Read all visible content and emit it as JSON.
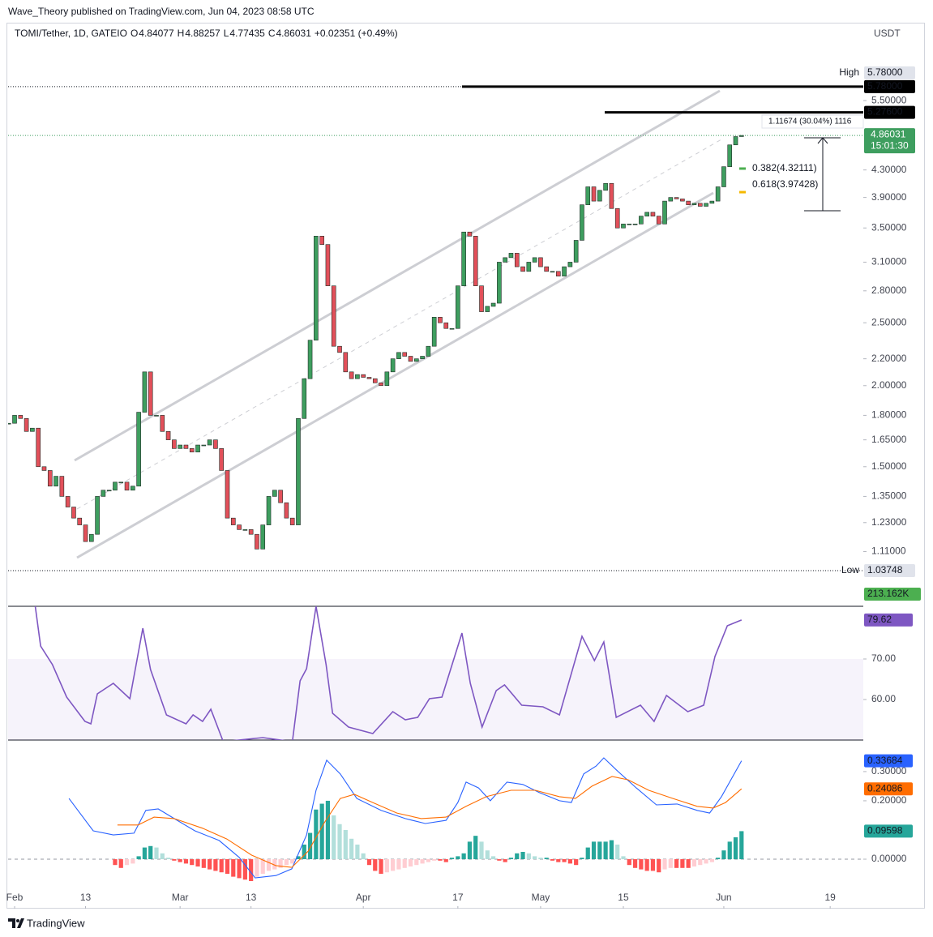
{
  "header": {
    "published": "Wave_Theory published on TradingView.com, Jun 04, 2023 08:58 UTC",
    "symbol": "TOMI/Tether, 1D, GATEIO",
    "ohlc": [
      {
        "key": "O",
        "value": "4.84077"
      },
      {
        "key": "H",
        "value": "4.88257"
      },
      {
        "key": "L",
        "value": "4.77435"
      },
      {
        "key": "C",
        "value": "4.86031"
      }
    ],
    "change": "+0.02351 (+0.49%)",
    "currency": "USDT"
  },
  "chart_data": [
    {
      "type": "candlestick",
      "log_scale": true,
      "up_color": "#3e9e5f",
      "down_color": "#e2505a",
      "x": [
        -1,
        0,
        1,
        2,
        3,
        4,
        5,
        6,
        7,
        8,
        9,
        10,
        11,
        12,
        13,
        14,
        15,
        16,
        17,
        18,
        19,
        20,
        21,
        22,
        23,
        24,
        25,
        26,
        27,
        28,
        29,
        30,
        31,
        32,
        33,
        34,
        35,
        36,
        37,
        38,
        39,
        40,
        41,
        42,
        43,
        44,
        45,
        46,
        47,
        48,
        49,
        50,
        51,
        52,
        53,
        54,
        55,
        56,
        57,
        58,
        59,
        60,
        61,
        62,
        63,
        64,
        65,
        66,
        67,
        68,
        69,
        70,
        71,
        72,
        73,
        74,
        75,
        76,
        77,
        78,
        79,
        80,
        81,
        82,
        83,
        84,
        85,
        86,
        87,
        88,
        89,
        90,
        91,
        92,
        93,
        94,
        95,
        96,
        97,
        98,
        99,
        100,
        101,
        102,
        103,
        104,
        105,
        106,
        107,
        108,
        109,
        110,
        111,
        112,
        113,
        114,
        115,
        116,
        117,
        118,
        119,
        120,
        121,
        122,
        123
      ],
      "values": [
        1.75,
        1.8,
        1.78,
        1.7,
        1.72,
        1.5,
        1.48,
        1.4,
        1.45,
        1.35,
        1.3,
        1.25,
        1.22,
        1.15,
        1.18,
        1.35,
        1.38,
        1.38,
        1.42,
        1.42,
        1.38,
        1.4,
        1.82,
        2.1,
        1.8,
        1.8,
        1.7,
        1.65,
        1.6,
        1.62,
        1.6,
        1.58,
        1.62,
        1.62,
        1.65,
        1.6,
        1.48,
        1.25,
        1.22,
        1.2,
        1.2,
        1.18,
        1.12,
        1.22,
        1.35,
        1.38,
        1.32,
        1.25,
        1.22,
        1.78,
        2.05,
        2.35,
        3.4,
        3.3,
        2.85,
        2.3,
        2.25,
        2.1,
        2.05,
        2.08,
        2.06,
        2.05,
        2.02,
        2.0,
        2.1,
        2.2,
        2.25,
        2.22,
        2.18,
        2.2,
        2.22,
        2.3,
        2.55,
        2.5,
        2.45,
        2.45,
        2.85,
        3.45,
        3.4,
        2.85,
        2.6,
        2.65,
        2.68,
        3.1,
        3.15,
        3.2,
        3.05,
        3.0,
        3.1,
        3.15,
        3.05,
        3.0,
        3.0,
        2.95,
        3.05,
        3.1,
        3.35,
        3.8,
        4.05,
        3.85,
        4.0,
        4.1,
        3.75,
        3.5,
        3.55,
        3.55,
        3.55,
        3.65,
        3.7,
        3.65,
        3.55,
        3.85,
        3.9,
        3.88,
        3.85,
        3.8,
        3.82,
        3.78,
        3.82,
        3.85,
        4.05,
        4.35,
        4.7,
        4.84077,
        4.86031
      ],
      "xlim": [
        -1.1,
        143.6
      ],
      "xticks": [
        {
          "value": 0,
          "label": "Feb"
        },
        {
          "value": 12,
          "label": "13"
        },
        {
          "value": 28,
          "label": "Mar"
        },
        {
          "value": 40,
          "label": "13"
        },
        {
          "value": 59,
          "label": "Apr"
        },
        {
          "value": 75,
          "label": "17"
        },
        {
          "value": 89,
          "label": "May"
        },
        {
          "value": 103,
          "label": "15"
        },
        {
          "value": 120,
          "label": "Jun"
        },
        {
          "value": 138,
          "label": "19"
        }
      ],
      "ylim": [
        0.914,
        7.21
      ],
      "yticks": [
        {
          "value": 5.5,
          "label": "5.50000"
        },
        {
          "value": 4.3,
          "label": "4.30000"
        },
        {
          "value": 3.9,
          "label": "3.90000"
        },
        {
          "value": 3.5,
          "label": "3.50000"
        },
        {
          "value": 3.1,
          "label": "3.10000"
        },
        {
          "value": 2.8,
          "label": "2.80000"
        },
        {
          "value": 2.5,
          "label": "2.50000"
        },
        {
          "value": 2.2,
          "label": "2.20000"
        },
        {
          "value": 2,
          "label": "2.00000"
        },
        {
          "value": 1.8,
          "label": "1.80000"
        },
        {
          "value": 1.65,
          "label": "1.65000"
        },
        {
          "value": 1.5,
          "label": "1.50000"
        },
        {
          "value": 1.35,
          "label": "1.35000"
        },
        {
          "value": 1.23,
          "label": "1.23000"
        },
        {
          "value": 1.11,
          "label": "1.11000"
        }
      ],
      "high_label": "High",
      "high": {
        "value": 5.78,
        "label": "5.78000"
      },
      "low_label": "Low",
      "low": 1.03748,
      "levels": [
        {
          "value": 5.78,
          "label": "5.78000"
        },
        {
          "value": 5.276,
          "label": "5.27600"
        }
      ],
      "countdown": "15:01:30",
      "fib": [
        {
          "value": 4.32111,
          "label": "0.382(4.32111)",
          "color": "#4caf50"
        },
        {
          "value": 3.97428,
          "label": "0.618(3.97428)",
          "color": "#f5b800"
        }
      ],
      "measure": "1.11674 (30.04%) 1116",
      "volume_label": "213.162K"
    },
    {
      "type": "line",
      "color": "#7e57c2",
      "x": [
        3.5,
        4.4,
        6.4,
        8.8,
        11.9,
        12.9,
        14,
        16.7,
        19.5,
        21.7,
        23,
        25.7,
        29,
        30.2,
        31.8,
        33.2,
        35.3,
        42,
        47,
        48.3,
        49.4,
        51,
        52.7,
        53.8,
        56.5,
        60.6,
        64,
        66.1,
        68.2,
        70.2,
        72.3,
        75.7,
        77.1,
        79.1,
        81.5,
        82.9,
        85.8,
        89.4,
        92.2,
        96,
        98.1,
        99.7,
        101.8,
        105.9,
        108.2,
        110.3,
        113.9,
        116.6,
        118.5,
        120.6,
        123
      ],
      "values": [
        83,
        73.2,
        68.6,
        60.6,
        54.6,
        54,
        61.4,
        64,
        60.2,
        77.6,
        67.4,
        56.2,
        54,
        56.2,
        54.6,
        57.6,
        49.6,
        50.6,
        49.6,
        64.6,
        67.6,
        83,
        68.6,
        56.6,
        53.2,
        51.6,
        57,
        55,
        55.6,
        60.2,
        60.6,
        76.4,
        64,
        53.2,
        62.2,
        63.6,
        58.6,
        58.2,
        56.2,
        75.6,
        69.6,
        74.2,
        55.6,
        58.6,
        54.6,
        61,
        57,
        58.6,
        70.6,
        78.2,
        79.62
      ],
      "ylim": [
        50,
        83
      ],
      "yticks": [
        {
          "value": 70,
          "label": "70.00"
        },
        {
          "value": 60,
          "label": "60.00"
        }
      ]
    },
    {
      "type": "macd",
      "series": [
        {
          "color": "#2962ff",
          "x": [
            9.2,
            13.3,
            16.7,
            20.2,
            22.2,
            24.3,
            27,
            30.5,
            34.6,
            38,
            40.7,
            44.2,
            46.9,
            49.4,
            51,
            52.8,
            55.1,
            57.9,
            62,
            66.1,
            69.5,
            73,
            75,
            76.4,
            78.5,
            80.5,
            83.3,
            86,
            88.8,
            92.2,
            94.2,
            96.3,
            98.4,
            99.7,
            101.8,
            105.2,
            108.6,
            112.1,
            115.5,
            117.6,
            119.6,
            123
          ],
          "values": [
            0.208,
            0.097,
            0.083,
            0.089,
            0.167,
            0.172,
            0.139,
            0.097,
            0.064,
            0.006,
            -0.064,
            -0.056,
            -0.033,
            0.083,
            0.236,
            0.339,
            0.292,
            0.208,
            0.167,
            0.139,
            0.122,
            0.133,
            0.194,
            0.264,
            0.244,
            0.2,
            0.264,
            0.256,
            0.228,
            0.2,
            0.194,
            0.292,
            0.319,
            0.347,
            0.306,
            0.244,
            0.186,
            0.189,
            0.167,
            0.158,
            0.214,
            0.33684
          ]
        },
        {
          "color": "#ff6d00",
          "x": [
            17.4,
            20.9,
            23.6,
            27,
            31.8,
            35.9,
            40.1,
            44.2,
            46.9,
            49.7,
            52.4,
            55.1,
            57.5,
            60.6,
            64.7,
            68.8,
            73,
            76.4,
            79.8,
            84,
            88.1,
            92.2,
            94.9,
            97.7,
            101.1,
            103.8,
            107.3,
            111.4,
            115.5,
            118.2,
            120.3,
            123
          ],
          "values": [
            0.117,
            0.117,
            0.144,
            0.139,
            0.106,
            0.069,
            0.014,
            -0.022,
            -0.028,
            0.028,
            0.125,
            0.208,
            0.222,
            0.194,
            0.158,
            0.139,
            0.144,
            0.181,
            0.214,
            0.236,
            0.236,
            0.214,
            0.208,
            0.25,
            0.283,
            0.272,
            0.236,
            0.208,
            0.181,
            0.175,
            0.194,
            0.24086
          ]
        }
      ],
      "histogram": {
        "colors": [
          "#26a69a",
          "#b2dfdb",
          "#ff5252",
          "#ffcdd2"
        ],
        "x": [
          17,
          18,
          19,
          20,
          21,
          22,
          23,
          24,
          25,
          26,
          27,
          28,
          29,
          30,
          31,
          32,
          33,
          34,
          35,
          36,
          37,
          38,
          39,
          40,
          41,
          42,
          43,
          44,
          45,
          46,
          47,
          48,
          49,
          50,
          51,
          52,
          53,
          54,
          55,
          56,
          57,
          58,
          59,
          60,
          61,
          62,
          63,
          64,
          65,
          66,
          67,
          68,
          69,
          70,
          71,
          72,
          73,
          74,
          75,
          76,
          77,
          78,
          79,
          80,
          81,
          82,
          83,
          84,
          85,
          86,
          87,
          88,
          89,
          90,
          91,
          92,
          93,
          94,
          95,
          96,
          97,
          98,
          99,
          100,
          101,
          102,
          103,
          104,
          105,
          106,
          107,
          108,
          109,
          110,
          111,
          112,
          113,
          114,
          115,
          116,
          117,
          118,
          119,
          120,
          121,
          122,
          123
        ],
        "values": [
          -0.02,
          -0.03,
          -0.02,
          -0.015,
          0.01,
          0.04,
          0.045,
          0.04,
          0.02,
          0.005,
          -0.005,
          -0.01,
          -0.015,
          -0.02,
          -0.025,
          -0.03,
          -0.035,
          -0.04,
          -0.045,
          -0.05,
          -0.06,
          -0.065,
          -0.07,
          -0.075,
          -0.06,
          -0.05,
          -0.04,
          -0.035,
          -0.03,
          -0.02,
          -0.015,
          0.01,
          0.05,
          0.09,
          0.17,
          0.19,
          0.2,
          0.15,
          0.12,
          0.1,
          0.07,
          0.05,
          0.02,
          -0.02,
          -0.04,
          -0.05,
          -0.045,
          -0.04,
          -0.035,
          -0.03,
          -0.025,
          -0.02,
          -0.015,
          -0.01,
          -0.005,
          -0.005,
          -0.01,
          0.005,
          0.01,
          0.02,
          0.06,
          0.08,
          0.06,
          0.03,
          0.01,
          -0.005,
          -0.01,
          0.005,
          0.02,
          0.025,
          0.02,
          0.01,
          0.005,
          0.005,
          -0.005,
          -0.01,
          -0.01,
          -0.015,
          -0.02,
          0.005,
          0.04,
          0.06,
          0.06,
          0.06,
          0.065,
          0.05,
          0.01,
          -0.02,
          -0.03,
          -0.035,
          -0.04,
          -0.04,
          -0.045,
          -0.035,
          -0.03,
          -0.03,
          -0.03,
          -0.03,
          -0.025,
          -0.02,
          -0.015,
          -0.01,
          0.005,
          0.03,
          0.06,
          0.075,
          0.09598
        ]
      },
      "ylim": [
        -0.161,
        0.408
      ],
      "yticks": [
        {
          "value": 0.3,
          "label": "0.30000"
        },
        {
          "value": 0.2,
          "label": "0.20000"
        },
        {
          "value": 0,
          "label": "0.00000"
        }
      ]
    }
  ],
  "footer": "TradingView"
}
